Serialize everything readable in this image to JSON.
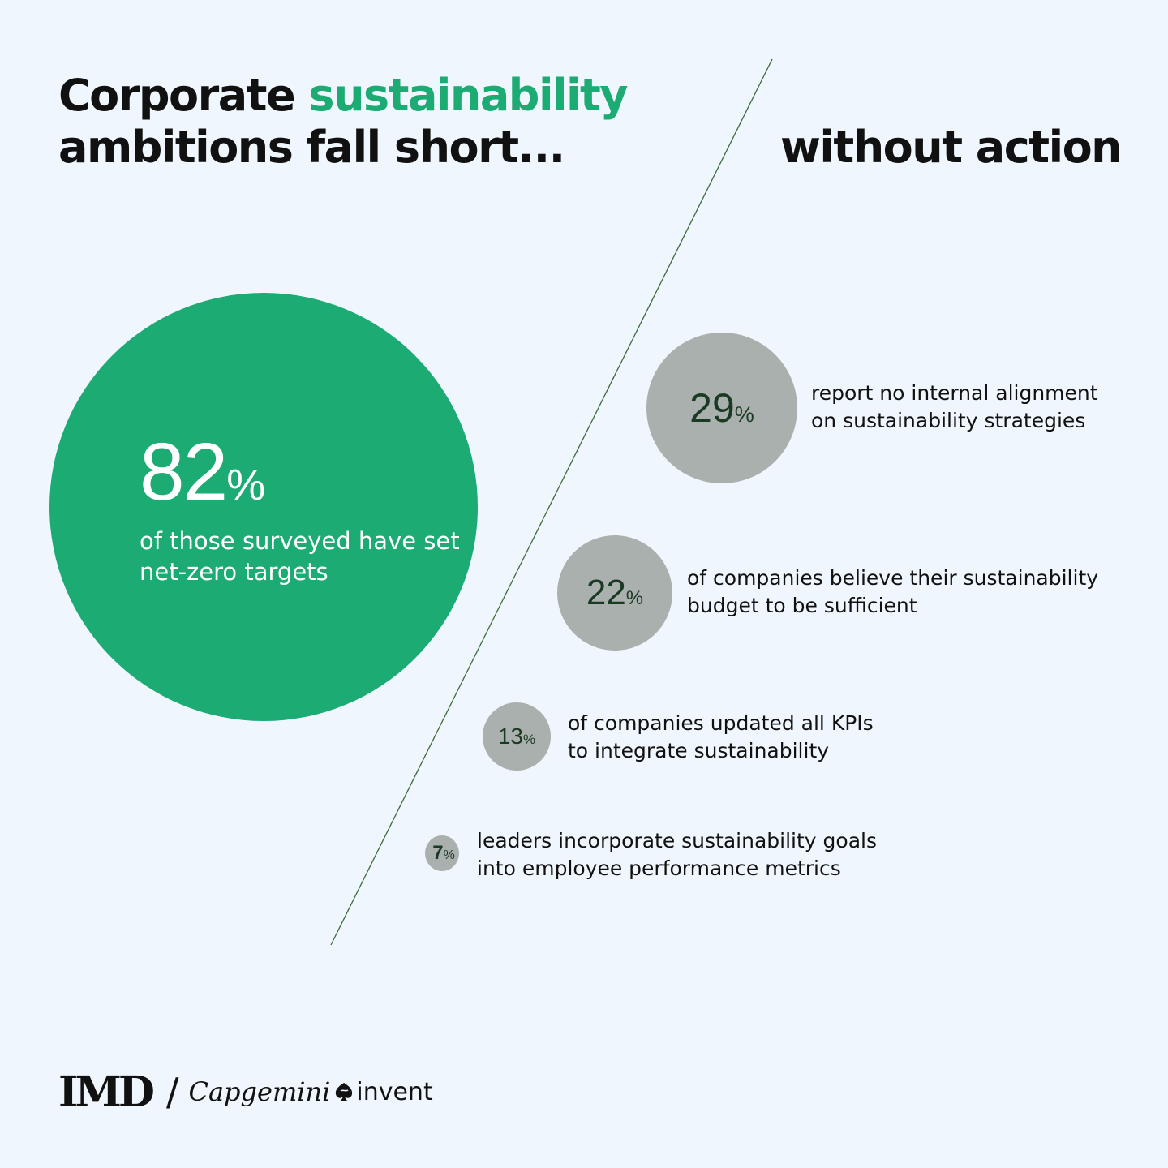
{
  "header": {
    "title_part1": "Corporate ",
    "title_accent": "sustainability",
    "title_line2": "ambitions fall short...",
    "title_right": "without action"
  },
  "main_stat": {
    "value": "82",
    "unit": "%",
    "description": "of those surveyed have set net-zero targets"
  },
  "stats": [
    {
      "value": "29",
      "unit": "%",
      "line1": "report no internal alignment",
      "line2": "on sustainability strategies"
    },
    {
      "value": "22",
      "unit": "%",
      "line1": "of companies believe their sustainability",
      "line2": "budget to be sufficient"
    },
    {
      "value": "13",
      "unit": "%",
      "line1": "of companies updated all KPIs",
      "line2": "to integrate sustainability"
    },
    {
      "value": "7",
      "unit": "%",
      "line1": "leaders incorporate sustainability goals",
      "line2": "into employee performance metrics"
    }
  ],
  "footer": {
    "logo_imd": "IMD",
    "separator": "/",
    "logo_capgemini": "Capgemini",
    "logo_invent": "invent"
  },
  "colors": {
    "background": "#f0f6fd",
    "accent_green": "#1bab73",
    "circle_gray": "#aab0ae",
    "stat_number": "#1b3a24",
    "divider": "#3c6b3a"
  }
}
